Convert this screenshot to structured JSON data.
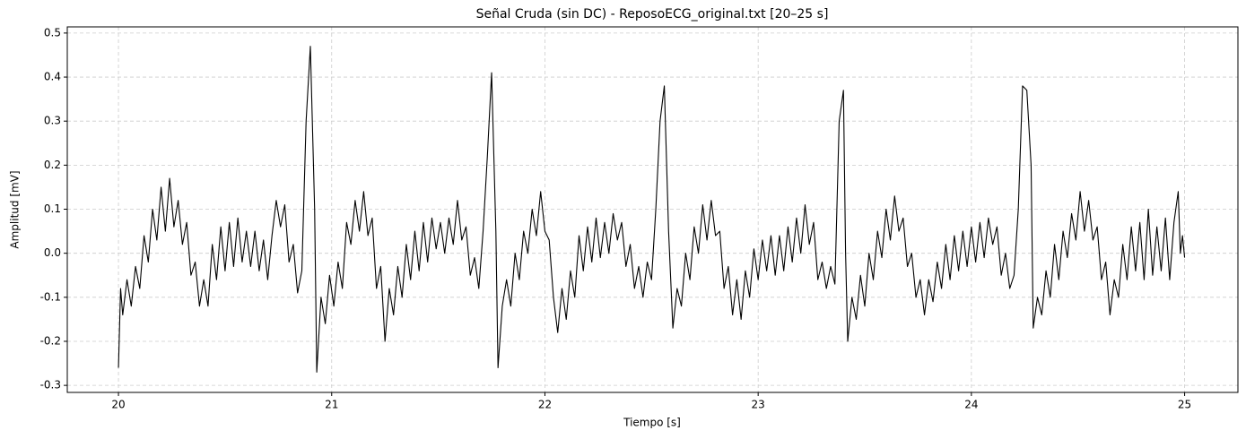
{
  "chart_data": {
    "type": "line",
    "title": "Señal Cruda (sin DC) - ReposoECG_original.txt [20–25 s]",
    "x_label": "Tiempo [s]",
    "y_label": "Amplitud [mV]",
    "color": "#000000",
    "grid": true,
    "xlim": [
      19.76,
      25.25
    ],
    "ylim": [
      -0.316,
      0.514
    ],
    "xticks": [
      20,
      21,
      22,
      23,
      24,
      25
    ],
    "yticks": [
      -0.3,
      -0.2,
      -0.1,
      {
        "value": 0,
        "label": "0.0"
      },
      0.1,
      0.2,
      0.3,
      0.4,
      0.5
    ],
    "x": [
      20.0,
      20.01,
      20.02,
      20.04,
      20.06,
      20.08,
      20.1,
      20.12,
      20.14,
      20.16,
      20.18,
      20.2,
      20.22,
      20.24,
      20.26,
      20.28,
      20.3,
      20.32,
      20.34,
      20.36,
      20.38,
      20.4,
      20.42,
      20.44,
      20.46,
      20.48,
      20.5,
      20.52,
      20.54,
      20.56,
      20.58,
      20.6,
      20.62,
      20.64,
      20.66,
      20.68,
      20.7,
      20.72,
      20.74,
      20.76,
      20.78,
      20.8,
      20.82,
      20.84,
      20.86,
      20.88,
      20.9,
      20.92,
      20.93,
      20.95,
      20.97,
      20.99,
      21.01,
      21.03,
      21.05,
      21.07,
      21.09,
      21.11,
      21.13,
      21.15,
      21.17,
      21.19,
      21.21,
      21.23,
      21.25,
      21.27,
      21.29,
      21.31,
      21.33,
      21.35,
      21.37,
      21.39,
      21.41,
      21.43,
      21.45,
      21.47,
      21.49,
      21.51,
      21.53,
      21.55,
      21.57,
      21.59,
      21.61,
      21.63,
      21.65,
      21.67,
      21.69,
      21.71,
      21.73,
      21.75,
      21.77,
      21.78,
      21.8,
      21.82,
      21.84,
      21.86,
      21.88,
      21.9,
      21.92,
      21.94,
      21.96,
      21.98,
      22.0,
      22.02,
      22.04,
      22.06,
      22.08,
      22.1,
      22.12,
      22.14,
      22.16,
      22.18,
      22.2,
      22.22,
      22.24,
      22.26,
      22.28,
      22.3,
      22.32,
      22.34,
      22.36,
      22.38,
      22.4,
      22.42,
      22.44,
      22.46,
      22.48,
      22.5,
      22.52,
      22.54,
      22.56,
      22.58,
      22.6,
      22.62,
      22.64,
      22.66,
      22.68,
      22.7,
      22.72,
      22.74,
      22.76,
      22.78,
      22.8,
      22.82,
      22.84,
      22.86,
      22.88,
      22.9,
      22.92,
      22.94,
      22.96,
      22.98,
      23.0,
      23.02,
      23.04,
      23.06,
      23.08,
      23.1,
      23.12,
      23.14,
      23.16,
      23.18,
      23.2,
      23.22,
      23.24,
      23.26,
      23.28,
      23.3,
      23.32,
      23.34,
      23.36,
      23.38,
      23.4,
      23.41,
      23.42,
      23.44,
      23.46,
      23.48,
      23.5,
      23.52,
      23.54,
      23.56,
      23.58,
      23.6,
      23.62,
      23.64,
      23.66,
      23.68,
      23.7,
      23.72,
      23.74,
      23.76,
      23.78,
      23.8,
      23.82,
      23.84,
      23.86,
      23.88,
      23.9,
      23.92,
      23.94,
      23.96,
      23.98,
      24.0,
      24.02,
      24.04,
      24.06,
      24.08,
      24.1,
      24.12,
      24.14,
      24.16,
      24.18,
      24.2,
      24.22,
      24.24,
      24.26,
      24.28,
      24.29,
      24.31,
      24.33,
      24.35,
      24.37,
      24.39,
      24.41,
      24.43,
      24.45,
      24.47,
      24.49,
      24.51,
      24.53,
      24.55,
      24.57,
      24.59,
      24.61,
      24.63,
      24.65,
      24.67,
      24.69,
      24.71,
      24.73,
      24.75,
      24.77,
      24.79,
      24.81,
      24.83,
      24.85,
      24.87,
      24.89,
      24.91,
      24.93,
      24.95,
      24.97,
      24.98,
      24.99,
      25.0
    ],
    "values": [
      -0.26,
      -0.08,
      -0.14,
      -0.06,
      -0.12,
      -0.03,
      -0.08,
      0.04,
      -0.02,
      0.1,
      0.03,
      0.15,
      0.05,
      0.17,
      0.06,
      0.12,
      0.02,
      0.07,
      -0.05,
      -0.02,
      -0.12,
      -0.06,
      -0.12,
      0.02,
      -0.06,
      0.06,
      -0.04,
      0.07,
      -0.03,
      0.08,
      -0.02,
      0.05,
      -0.03,
      0.05,
      -0.04,
      0.03,
      -0.06,
      0.04,
      0.12,
      0.06,
      0.11,
      -0.02,
      0.02,
      -0.09,
      -0.04,
      0.3,
      0.47,
      0.1,
      -0.27,
      -0.1,
      -0.16,
      -0.05,
      -0.12,
      -0.02,
      -0.08,
      0.07,
      0.02,
      0.12,
      0.05,
      0.14,
      0.04,
      0.08,
      -0.08,
      -0.03,
      -0.2,
      -0.08,
      -0.14,
      -0.03,
      -0.1,
      0.02,
      -0.06,
      0.05,
      -0.04,
      0.07,
      -0.02,
      0.08,
      0.01,
      0.07,
      0.0,
      0.08,
      0.02,
      0.12,
      0.03,
      0.06,
      -0.05,
      -0.01,
      -0.08,
      0.05,
      0.22,
      0.41,
      0.05,
      -0.26,
      -0.12,
      -0.06,
      -0.12,
      0.0,
      -0.06,
      0.05,
      0.0,
      0.1,
      0.04,
      0.14,
      0.05,
      0.03,
      -0.1,
      -0.18,
      -0.08,
      -0.15,
      -0.04,
      -0.1,
      0.04,
      -0.04,
      0.06,
      -0.02,
      0.08,
      -0.01,
      0.07,
      0.0,
      0.09,
      0.03,
      0.07,
      -0.03,
      0.02,
      -0.08,
      -0.03,
      -0.1,
      -0.02,
      -0.06,
      0.1,
      0.3,
      0.38,
      0.05,
      -0.17,
      -0.08,
      -0.12,
      0.0,
      -0.06,
      0.06,
      0.0,
      0.11,
      0.03,
      0.12,
      0.04,
      0.05,
      -0.08,
      -0.03,
      -0.14,
      -0.06,
      -0.15,
      -0.04,
      -0.1,
      0.01,
      -0.06,
      0.03,
      -0.04,
      0.04,
      -0.05,
      0.04,
      -0.04,
      0.06,
      -0.02,
      0.08,
      0.0,
      0.11,
      0.02,
      0.07,
      -0.06,
      -0.02,
      -0.08,
      -0.03,
      -0.07,
      0.3,
      0.37,
      0.0,
      -0.2,
      -0.1,
      -0.15,
      -0.05,
      -0.12,
      0.0,
      -0.06,
      0.05,
      -0.01,
      0.1,
      0.03,
      0.13,
      0.05,
      0.08,
      -0.03,
      0.0,
      -0.1,
      -0.06,
      -0.14,
      -0.06,
      -0.11,
      -0.02,
      -0.08,
      0.02,
      -0.06,
      0.04,
      -0.04,
      0.05,
      -0.03,
      0.06,
      -0.02,
      0.07,
      -0.01,
      0.08,
      0.02,
      0.06,
      -0.05,
      0.0,
      -0.08,
      -0.05,
      0.1,
      0.38,
      0.37,
      0.2,
      -0.17,
      -0.1,
      -0.14,
      -0.04,
      -0.1,
      0.02,
      -0.06,
      0.05,
      -0.01,
      0.09,
      0.03,
      0.14,
      0.05,
      0.12,
      0.03,
      0.06,
      -0.06,
      -0.02,
      -0.14,
      -0.06,
      -0.1,
      0.02,
      -0.06,
      0.06,
      -0.04,
      0.07,
      -0.06,
      0.1,
      -0.05,
      0.06,
      -0.04,
      0.08,
      -0.06,
      0.07,
      0.14,
      0.0,
      0.04,
      -0.01
    ]
  }
}
